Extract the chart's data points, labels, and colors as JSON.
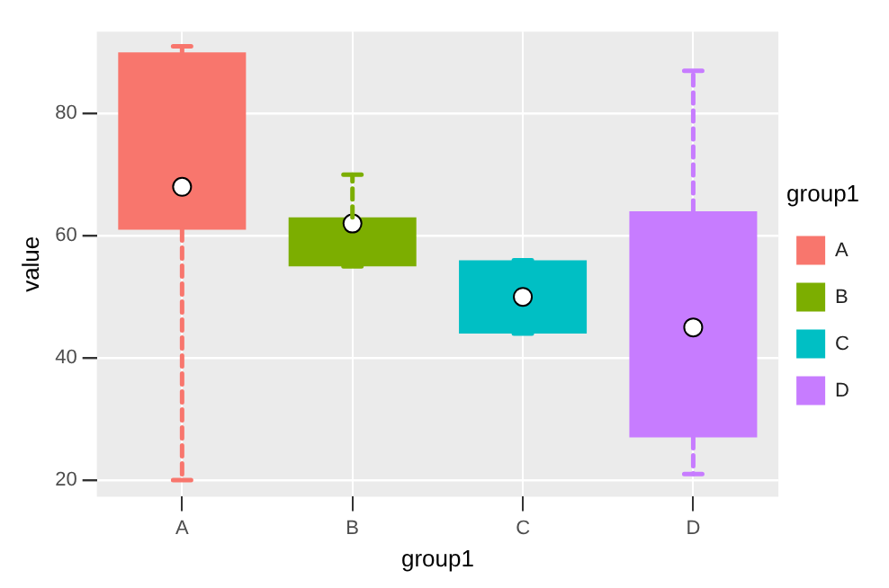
{
  "chart_data": {
    "type": "box",
    "xlabel": "group1",
    "ylabel": "value",
    "legend_title": "group1",
    "categories": [
      "A",
      "B",
      "C",
      "D"
    ],
    "series": [
      {
        "name": "A",
        "color": "#f8766d",
        "boxes": [
          {
            "low": 20,
            "q1": 61,
            "q3": 90,
            "high": 91,
            "mean": 68
          },
          null,
          null,
          null
        ]
      },
      {
        "name": "B",
        "color": "#7cae00",
        "boxes": [
          null,
          {
            "low": 55,
            "q1": 55,
            "q3": 63,
            "high": 70,
            "mean": 62
          },
          null,
          null
        ]
      },
      {
        "name": "C",
        "color": "#00bfc4",
        "boxes": [
          null,
          null,
          {
            "low": 44,
            "q1": 44,
            "q3": 56,
            "high": 56,
            "mean": 50
          },
          null
        ]
      },
      {
        "name": "D",
        "color": "#c77cff",
        "boxes": [
          null,
          null,
          null,
          {
            "low": 21,
            "q1": 27,
            "q3": 64,
            "high": 87,
            "mean": 45
          }
        ]
      }
    ],
    "ylim": [
      17.3,
      93.4
    ],
    "yticks": [
      20,
      40,
      60,
      80
    ],
    "grid": true,
    "legend": "right",
    "line_style": "dashed",
    "marker": "circle"
  }
}
